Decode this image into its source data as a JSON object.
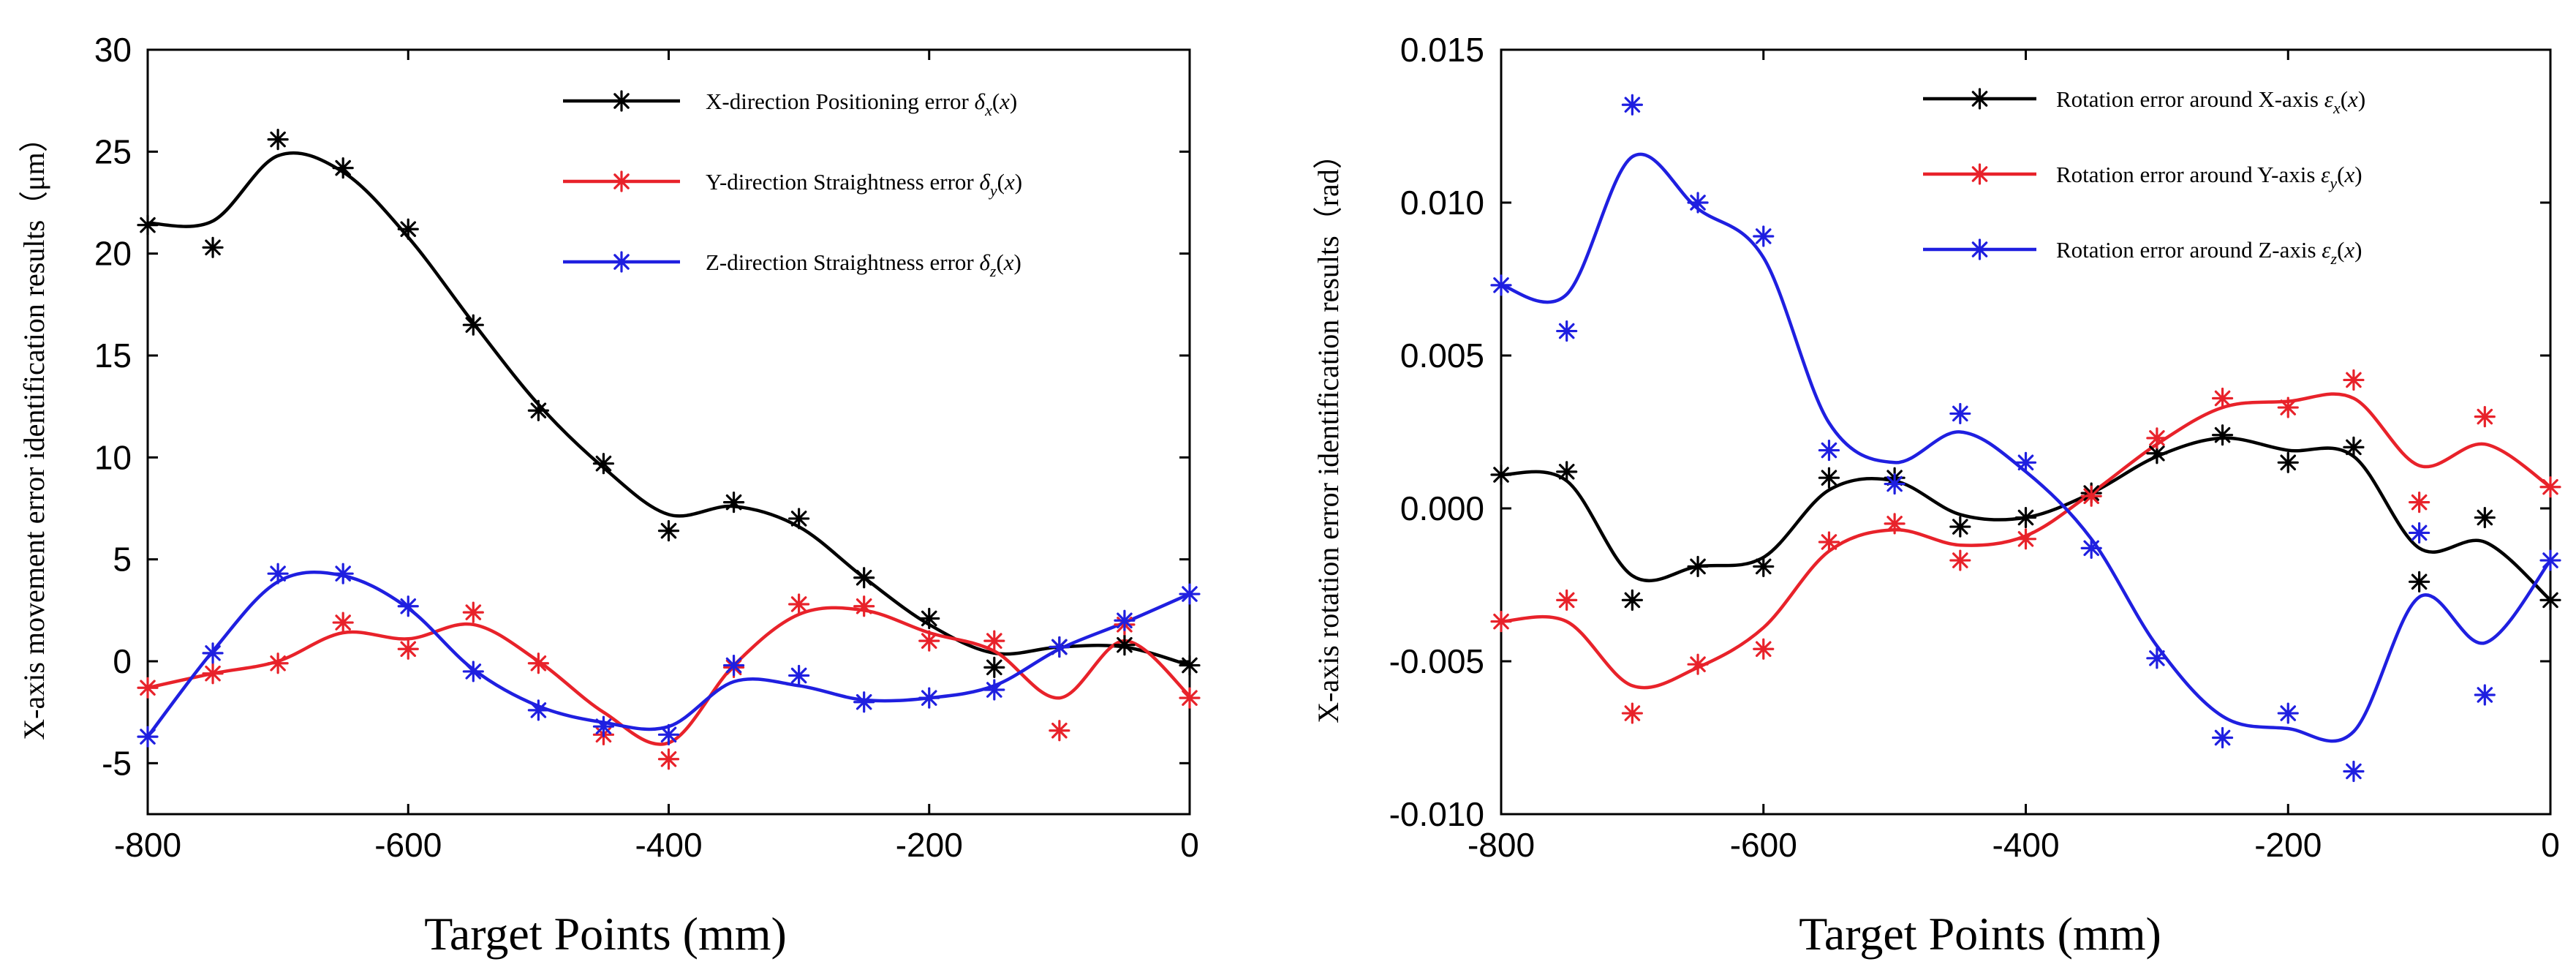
{
  "chart_data": [
    {
      "type": "line",
      "title": "",
      "xlabel": "Target Points (mm)",
      "ylabel": "X-axis movement error identification results（μm）",
      "xlim": [
        -800,
        0
      ],
      "ylim": [
        -7.5,
        30
      ],
      "xticks": [
        -800,
        -600,
        -400,
        -200,
        0
      ],
      "yticks": [
        -5,
        0,
        5,
        10,
        15,
        20,
        25,
        30
      ],
      "xtick_labels": [
        "-800",
        "-600",
        "-400",
        "-200",
        "0"
      ],
      "ytick_labels": [
        "-5",
        "0",
        "5",
        "10",
        "15",
        "20",
        "25",
        "30"
      ],
      "legend_position": "top-right",
      "x": [
        -800,
        -750,
        -700,
        -650,
        -600,
        -550,
        -500,
        -450,
        -400,
        -350,
        -300,
        -250,
        -200,
        -150,
        -100,
        -50,
        0
      ],
      "series": [
        {
          "name": "X-direction Positioning error δx(x)",
          "legend_text": "X-direction Positioning error",
          "legend_math": "δ",
          "legend_sub": "x",
          "color": "#000000",
          "markers": [
            21.4,
            20.3,
            25.6,
            24.2,
            21.2,
            16.5,
            12.3,
            9.7,
            6.4,
            7.8,
            7.0,
            4.1,
            2.1,
            -0.3,
            0.7,
            0.8,
            -0.2
          ],
          "curve": [
            21.5,
            21.6,
            24.8,
            24.0,
            20.8,
            16.6,
            12.6,
            9.5,
            7.2,
            7.6,
            6.6,
            4.1,
            1.8,
            0.4,
            0.7,
            0.7,
            -0.2
          ]
        },
        {
          "name": "Y-direction Straightness error δy(x)",
          "legend_text": "Y-direction Straightness error",
          "legend_math": "δ",
          "legend_sub": "y",
          "color": "#e8222a",
          "markers": [
            -1.3,
            -0.6,
            -0.1,
            1.9,
            0.6,
            2.4,
            -0.1,
            -3.6,
            -4.8,
            -0.3,
            2.8,
            2.7,
            1.0,
            1.0,
            -3.4,
            1.8,
            -1.8
          ],
          "curve": [
            -1.3,
            -0.6,
            0.0,
            1.4,
            1.1,
            1.8,
            0.0,
            -2.5,
            -4.0,
            -0.2,
            2.3,
            2.5,
            1.4,
            0.5,
            -1.8,
            1.0,
            -1.7
          ]
        },
        {
          "name": "Z-direction Straightness error δz(x)",
          "legend_text": "Z-direction Straightness error",
          "legend_math": "δ",
          "legend_sub": "z",
          "color": "#1f1fe0",
          "markers": [
            -3.7,
            0.4,
            4.3,
            4.3,
            2.7,
            -0.5,
            -2.4,
            -3.2,
            -3.6,
            -0.2,
            -0.7,
            -2.0,
            -1.8,
            -1.4,
            0.7,
            2.0,
            3.3
          ],
          "curve": [
            -3.7,
            0.5,
            3.9,
            4.2,
            2.6,
            -0.4,
            -2.2,
            -3.0,
            -3.2,
            -1.0,
            -1.2,
            -1.9,
            -1.8,
            -1.2,
            0.6,
            1.9,
            3.3
          ]
        }
      ]
    },
    {
      "type": "line",
      "title": "",
      "xlabel": "Target Points (mm)",
      "ylabel": "X-axis rotation error identification results（rad）",
      "xlim": [
        -800,
        0
      ],
      "ylim": [
        -0.01,
        0.015
      ],
      "xticks": [
        -800,
        -600,
        -400,
        -200,
        0
      ],
      "yticks": [
        -0.01,
        -0.005,
        0.0,
        0.005,
        0.01,
        0.015
      ],
      "xtick_labels": [
        "-800",
        "-600",
        "-400",
        "-200",
        "0"
      ],
      "ytick_labels": [
        "-0.010",
        "-0.005",
        "0.000",
        "0.005",
        "0.010",
        "0.015"
      ],
      "legend_position": "top-right",
      "x": [
        -800,
        -750,
        -700,
        -650,
        -600,
        -550,
        -500,
        -450,
        -400,
        -350,
        -300,
        -250,
        -200,
        -150,
        -100,
        -50,
        0
      ],
      "series": [
        {
          "name": "Rotation error around X-axis εx(x)",
          "legend_text": "Rotation error around X-axis",
          "legend_math": "ε",
          "legend_sub": "x",
          "color": "#000000",
          "markers": [
            0.0011,
            0.0012,
            -0.003,
            -0.0019,
            -0.0019,
            0.001,
            0.001,
            -0.0006,
            -0.0003,
            0.0005,
            0.0018,
            0.0024,
            0.0015,
            0.002,
            -0.0024,
            -0.0003,
            -0.003
          ],
          "curve": [
            0.0011,
            0.0009,
            -0.0022,
            -0.0019,
            -0.0016,
            0.0006,
            0.0009,
            -0.0002,
            -0.0003,
            0.0005,
            0.0017,
            0.0023,
            0.0019,
            0.0017,
            -0.0013,
            -0.0011,
            -0.003
          ]
        },
        {
          "name": "Rotation error around Y-axis εy(x)",
          "legend_text": "Rotation error around Y-axis",
          "legend_math": "ε",
          "legend_sub": "y",
          "color": "#e8222a",
          "markers": [
            -0.0037,
            -0.003,
            -0.0067,
            -0.0051,
            -0.0046,
            -0.0011,
            -0.0005,
            -0.0017,
            -0.001,
            0.0004,
            0.0023,
            0.0036,
            0.0033,
            0.0042,
            0.0002,
            0.003,
            0.0007
          ],
          "curve": [
            -0.0037,
            -0.0037,
            -0.0058,
            -0.0052,
            -0.0039,
            -0.0014,
            -0.0007,
            -0.0012,
            -0.0009,
            0.0005,
            0.0021,
            0.0033,
            0.0035,
            0.0036,
            0.0014,
            0.0021,
            0.0007
          ]
        },
        {
          "name": "Rotation error around Z-axis εz(x)",
          "legend_text": "Rotation error around Z-axis",
          "legend_math": "ε",
          "legend_sub": "z",
          "color": "#1f1fe0",
          "markers": [
            0.0073,
            0.0058,
            0.0132,
            0.01,
            0.0089,
            0.0019,
            0.0008,
            0.0031,
            0.0015,
            -0.0013,
            -0.0049,
            -0.0075,
            -0.0067,
            -0.0086,
            -0.0008,
            -0.0061,
            -0.0017
          ],
          "curve": [
            0.0073,
            0.007,
            0.0115,
            0.0098,
            0.0082,
            0.0028,
            0.0015,
            0.0025,
            0.0012,
            -0.001,
            -0.0045,
            -0.0068,
            -0.0072,
            -0.0073,
            -0.0029,
            -0.0044,
            -0.0017
          ]
        }
      ]
    }
  ]
}
